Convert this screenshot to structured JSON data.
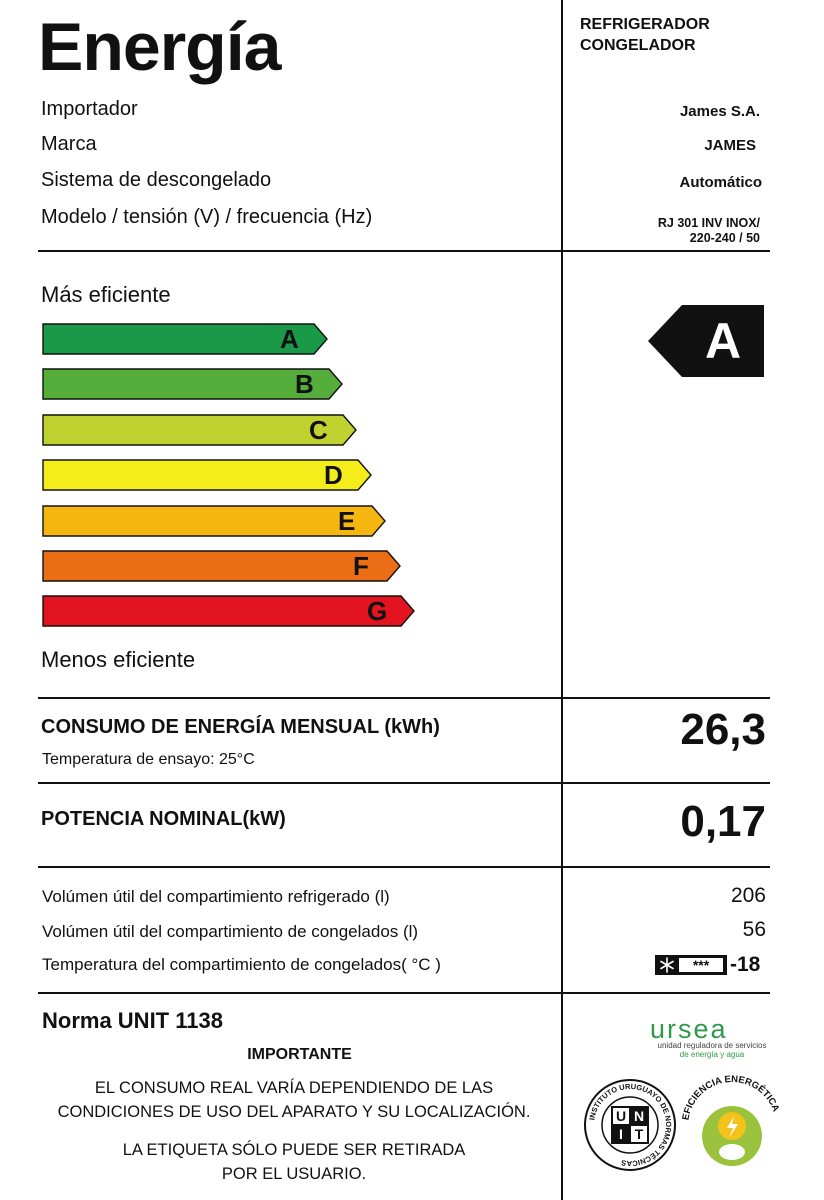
{
  "header": {
    "title": "Energía",
    "category": [
      "REFRIGERADOR",
      "CONGELADOR"
    ]
  },
  "specs": [
    {
      "label": "Importador",
      "value": "James S.A."
    },
    {
      "label": "Marca",
      "value": "JAMES"
    },
    {
      "label": "Sistema de descongelado",
      "value": "Automático"
    },
    {
      "label": "Modelo / tensión (V) / frecuencia (Hz)",
      "value": [
        "RJ 301 INV INOX/",
        "220-240 / 50"
      ]
    }
  ],
  "scale": {
    "top_label": "Más eficiente",
    "bottom_label": "Menos eficiente",
    "classes": [
      {
        "letter": "A",
        "color": "#1a9a48"
      },
      {
        "letter": "B",
        "color": "#55ae3b"
      },
      {
        "letter": "C",
        "color": "#bfd230"
      },
      {
        "letter": "D",
        "color": "#f4ec1b"
      },
      {
        "letter": "E",
        "color": "#f5b60f"
      },
      {
        "letter": "F",
        "color": "#eb6e16"
      },
      {
        "letter": "G",
        "color": "#e2141f"
      }
    ],
    "rating": "A"
  },
  "consumption": {
    "label": "CONSUMO DE ENERGÍA MENSUAL (kWh)",
    "sub_label": "Temperatura de ensayo: 25°C",
    "value": "26,3"
  },
  "power": {
    "label": "POTENCIA NOMINAL(kW)",
    "value": "0,17"
  },
  "volumes": [
    {
      "label": "Volúmen útil del compartimiento refrigerado (l)",
      "value": "206"
    },
    {
      "label": "Volúmen útil del compartimiento de congelados (l)",
      "value": "56"
    },
    {
      "label": "Temperatura del compartimiento de congelados( °C )",
      "value": "-18"
    }
  ],
  "freezer_stars": "✳ ✳✳✳",
  "footer": {
    "norma": "Norma UNIT 1138",
    "important": "IMPORTANTE",
    "notice1": [
      "EL CONSUMO REAL VARÍA DEPENDIENDO DE LAS",
      "CONDICIONES DE USO DEL APARATO Y SU LOCALIZACIÓN."
    ],
    "notice2": [
      "LA ETIQUETA SÓLO PUEDE SER RETIRADA",
      "POR EL USUARIO."
    ]
  },
  "logos": {
    "ursea": "ursea",
    "ursea_sub": [
      "unidad reguladora de servicios",
      "de energía y agua"
    ],
    "unit_seal_ring": "INSTITUTO URUGUAYO DE NORMAS TÉCNICAS",
    "unit_seal_letters": [
      "U",
      "N",
      "I",
      "T"
    ],
    "ee_seal_ring": "EFICIENCIA ENERGÉTICA"
  }
}
